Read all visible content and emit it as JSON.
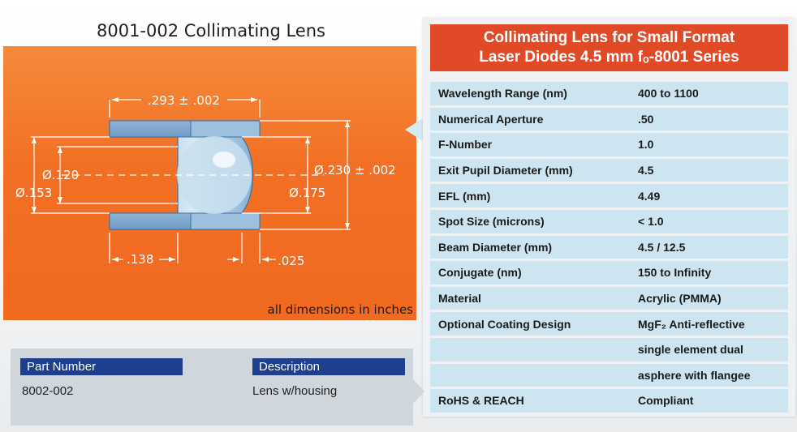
{
  "title": "8001-002 Collimating Lens",
  "diagram": {
    "dim_top": ".293 ± .002",
    "dim_120": "Ø.120",
    "dim_153": "Ø.153",
    "dim_230": "Ø.230 ± .002",
    "dim_175": "Ø.175",
    "dim_138": ".138",
    "dim_025": ".025",
    "note": "all dimensions in inches"
  },
  "spec": {
    "header_line1": "Collimating Lens for Small Format",
    "header_line2": "Laser Diodes 4.5 mm fₒ-8001 Series",
    "rows": [
      {
        "label": "Wavelength Range (nm)",
        "value": "400 to 1100"
      },
      {
        "label": "Numerical Aperture",
        "value": ".50"
      },
      {
        "label": "F-Number",
        "value": "1.0"
      },
      {
        "label": "Exit Pupil Diameter (mm)",
        "value": "4.5"
      },
      {
        "label": "EFL (mm)",
        "value": "4.49"
      },
      {
        "label": "Spot Size (microns)",
        "value": "< 1.0"
      },
      {
        "label": "Beam Diameter (mm)",
        "value": "4.5 / 12.5"
      },
      {
        "label": "Conjugate (nm)",
        "value": "150 to Infinity"
      },
      {
        "label": "Material",
        "value": "Acrylic (PMMA)"
      },
      {
        "label": "Optional Coating Design",
        "value": "MgF₂ Anti-reflective"
      },
      {
        "label": "",
        "value": "single element dual"
      },
      {
        "label": "",
        "value": "asphere with flangee"
      },
      {
        "label": "RoHS & REACH",
        "value": "Compliant"
      }
    ]
  },
  "parts": {
    "col1_header": "Part Number",
    "col2_header": "Description",
    "part_number": "8002-002",
    "description": "Lens w/housing"
  }
}
